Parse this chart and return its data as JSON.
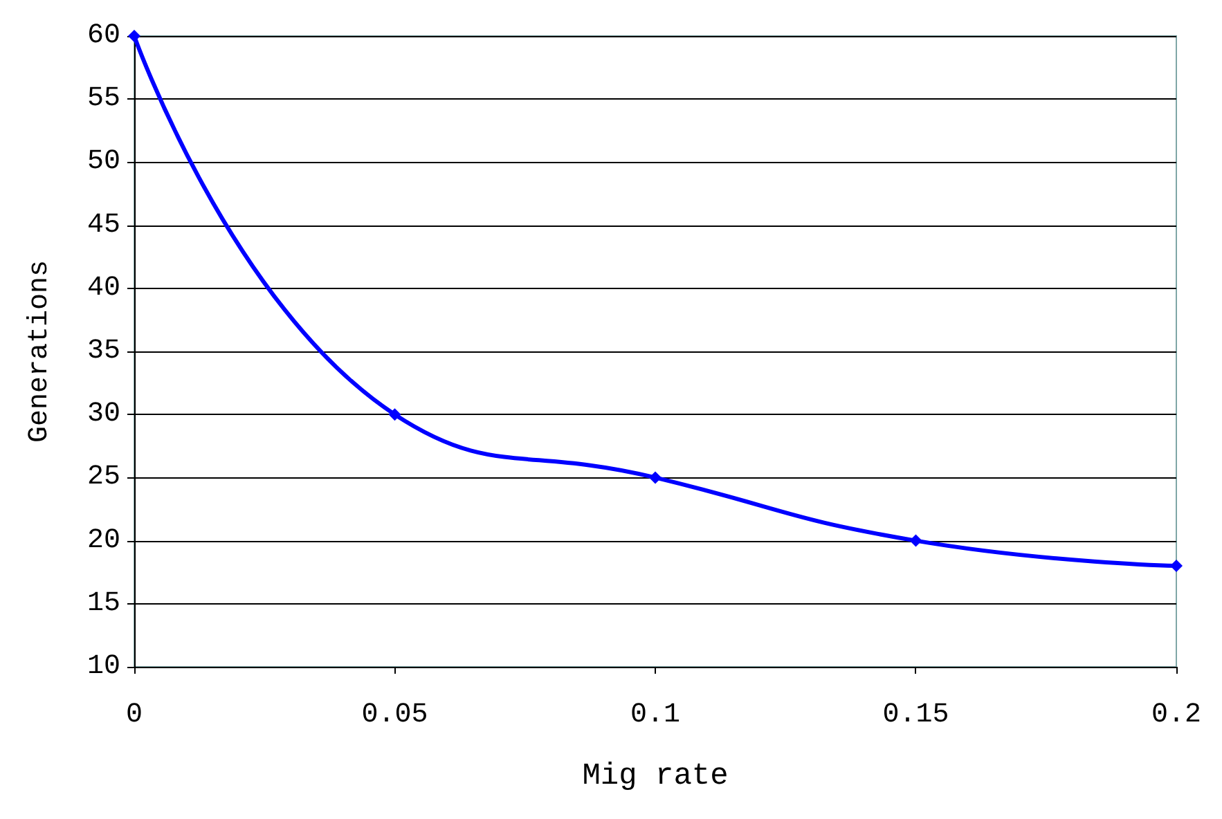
{
  "chart_data": {
    "type": "line",
    "xlabel": "Mig rate",
    "ylabel": "Generations",
    "x": [
      0,
      0.05,
      0.1,
      0.15,
      0.2
    ],
    "series": [
      {
        "color": "#0000ff",
        "values": [
          60,
          30,
          25,
          20,
          18
        ]
      }
    ],
    "xlim": [
      0,
      0.2
    ],
    "xticks": [
      0,
      0.05,
      0.1,
      0.15,
      0.2
    ],
    "ylim": [
      10,
      60
    ],
    "yticks": [
      10,
      15,
      20,
      25,
      30,
      35,
      40,
      45,
      50,
      55,
      60
    ],
    "grid": "y",
    "marker": "diamond",
    "line_style": "solid"
  }
}
